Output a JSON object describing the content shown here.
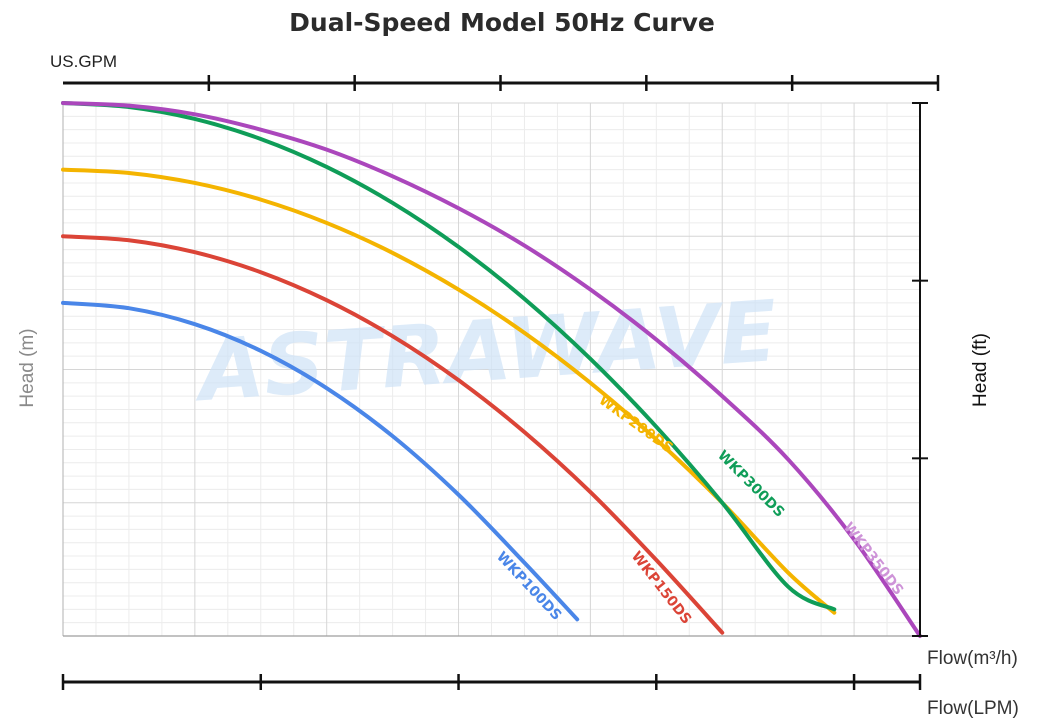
{
  "chart_data": {
    "type": "line",
    "title": "Dual-Speed Model 50Hz Curve",
    "watermark": "ASTRAWAVE",
    "x_primary": {
      "label": "Flow(m³/h)",
      "ticks": [
        "0",
        "2",
        "4",
        "6",
        "8",
        "10",
        "12"
      ],
      "range": [
        0,
        13
      ]
    },
    "x_gpm": {
      "label": "US.GPM",
      "ticks": [
        "10",
        "20",
        "30",
        "40",
        "50",
        "60"
      ],
      "range": [
        0,
        60
      ]
    },
    "x_lpm": {
      "label": "Flow(LPM)",
      "ticks": [
        "0",
        "50",
        "100",
        "150",
        "200"
      ],
      "range": [
        0,
        216.67
      ]
    },
    "y_left": {
      "label": "Head (m)",
      "ticks": [
        "0",
        "2",
        "4",
        "6",
        "8"
      ],
      "range": [
        0,
        8
      ]
    },
    "y_right": {
      "label": "Head (ft)",
      "ticks": [
        "0",
        "10",
        "20",
        "30"
      ],
      "range": [
        0,
        30
      ]
    },
    "grid": true,
    "series": [
      {
        "name": "WKP100DS",
        "color": "#4a86e8",
        "x": [
          0,
          1,
          2,
          3,
          4,
          5,
          6,
          7,
          7.8
        ],
        "y": [
          5.0,
          4.92,
          4.68,
          4.28,
          3.72,
          3.0,
          2.12,
          1.1,
          0.25
        ]
      },
      {
        "name": "WKP150DS",
        "color": "#db4437",
        "x": [
          0,
          1,
          2,
          3,
          4,
          5,
          6,
          7,
          8,
          9,
          10
        ],
        "y": [
          6.0,
          5.94,
          5.76,
          5.46,
          5.04,
          4.5,
          3.84,
          3.06,
          2.16,
          1.14,
          0.05
        ]
      },
      {
        "name": "WKP200DS",
        "color": "#f4b400",
        "x": [
          0,
          1,
          2,
          3,
          4,
          5,
          6,
          7,
          8,
          9,
          10,
          11,
          11.7
        ],
        "y": [
          7.0,
          6.95,
          6.8,
          6.55,
          6.2,
          5.75,
          5.2,
          4.55,
          3.8,
          2.95,
          2.0,
          0.95,
          0.35
        ]
      },
      {
        "name": "WKP300DS",
        "color": "#0f9d58",
        "x": [
          0,
          1,
          2,
          3,
          4,
          5,
          6,
          7,
          8,
          9,
          10,
          11,
          11.7
        ],
        "y": [
          8.0,
          7.94,
          7.76,
          7.46,
          7.04,
          6.5,
          5.84,
          5.06,
          4.16,
          3.14,
          2.0,
          0.74,
          0.4
        ]
      },
      {
        "name": "WKP350DS",
        "color": "#ab47bc",
        "x": [
          0,
          1,
          2,
          3,
          4,
          5,
          6,
          7,
          8,
          9,
          10,
          11,
          12,
          13
        ],
        "y": [
          8.0,
          7.96,
          7.83,
          7.6,
          7.3,
          6.9,
          6.42,
          5.86,
          5.2,
          4.45,
          3.6,
          2.65,
          1.45,
          0.0
        ]
      }
    ]
  }
}
